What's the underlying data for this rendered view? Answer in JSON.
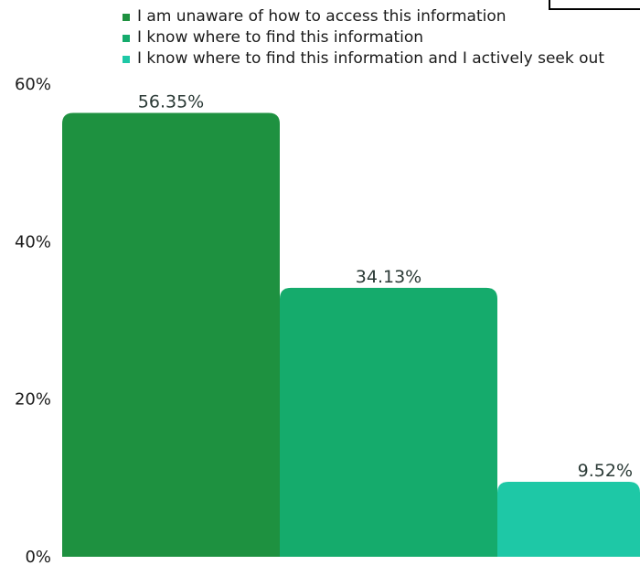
{
  "chart_data": {
    "type": "bar",
    "title": "",
    "xlabel": "",
    "ylabel": "",
    "ylim": [
      0,
      60
    ],
    "yticks": [
      "0%",
      "20%",
      "40%",
      "60%"
    ],
    "grid": false,
    "legend_position": "top-right",
    "series": [
      {
        "name": "I am unaware of how to access this information",
        "value": 56.35,
        "label": "56.35%",
        "color": "#1e9140"
      },
      {
        "name": "I know where to find this information",
        "value": 34.13,
        "label": "34.13%",
        "color": "#15ab6c"
      },
      {
        "name": "I know where to find this information and I actively seek out",
        "value": 9.52,
        "label": "9.52%",
        "color": "#1ec8a6"
      }
    ]
  }
}
